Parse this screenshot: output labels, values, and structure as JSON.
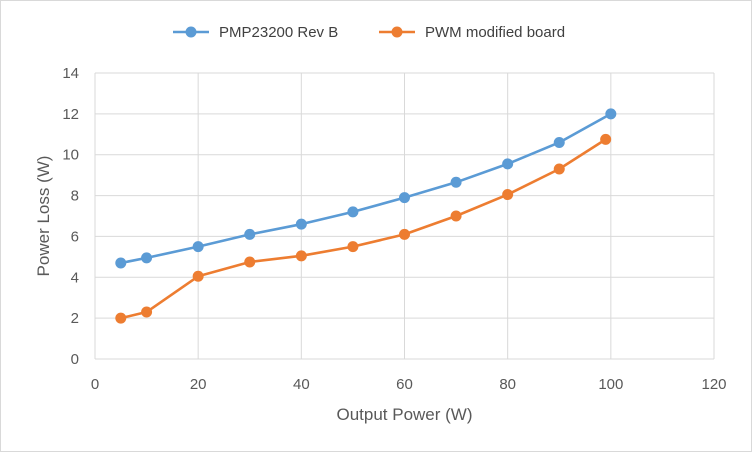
{
  "chart_data": {
    "type": "line",
    "title": "",
    "xlabel": "Output Power (W)",
    "ylabel": "Power Loss (W)",
    "xlim": [
      0,
      120
    ],
    "ylim": [
      0,
      14
    ],
    "xticks": [
      0,
      20,
      40,
      60,
      80,
      100,
      120
    ],
    "yticks": [
      0,
      2,
      4,
      6,
      8,
      10,
      12,
      14
    ],
    "grid": true,
    "legend_position": "top",
    "series": [
      {
        "name": "PMP23200 Rev B",
        "color": "#5b9bd5",
        "points": [
          [
            5,
            4.7
          ],
          [
            10,
            4.95
          ],
          [
            20,
            5.5
          ],
          [
            30,
            6.1
          ],
          [
            40,
            6.6
          ],
          [
            50,
            7.2
          ],
          [
            60,
            7.9
          ],
          [
            70,
            8.65
          ],
          [
            80,
            9.55
          ],
          [
            90,
            10.6
          ],
          [
            100,
            12.0
          ]
        ]
      },
      {
        "name": "PWM modified board",
        "color": "#ed7d31",
        "points": [
          [
            5,
            2.0
          ],
          [
            10,
            2.3
          ],
          [
            20,
            4.05
          ],
          [
            30,
            4.75
          ],
          [
            40,
            5.05
          ],
          [
            50,
            5.5
          ],
          [
            60,
            6.1
          ],
          [
            70,
            7.0
          ],
          [
            80,
            8.05
          ],
          [
            90,
            9.3
          ],
          [
            99,
            10.75
          ]
        ]
      }
    ]
  }
}
